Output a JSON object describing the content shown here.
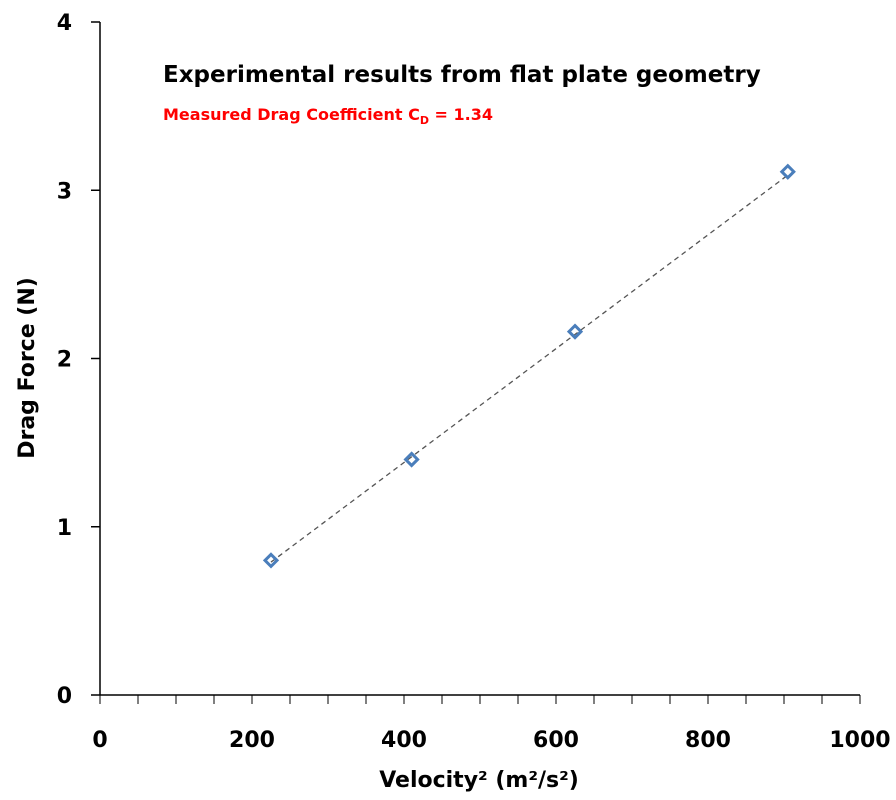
{
  "chart_data": {
    "type": "scatter",
    "title": "Experimental results from flat plate geometry",
    "annotation": {
      "prefix": "Measured  Drag  Coefficient  C",
      "subscript": "D",
      "suffix": " = 1.34",
      "color": "#ff0000"
    },
    "xlabel": "Velocity² (m²/s²)",
    "ylabel": "Drag Force (N)",
    "xlim": [
      0,
      1000
    ],
    "ylim": [
      0,
      4
    ],
    "x_ticks": [
      0,
      200,
      400,
      600,
      800,
      1000
    ],
    "x_tick_labels": [
      "0",
      "200",
      "400",
      "600",
      "800",
      "1000"
    ],
    "y_ticks": [
      0,
      1,
      2,
      3,
      4
    ],
    "y_tick_labels": [
      "0",
      "1",
      "2",
      "3",
      "4"
    ],
    "x_minor_step": 50,
    "grid": false,
    "legend": "none",
    "series": [
      {
        "marker": "diamond",
        "color": "#4a7ebb",
        "x": [
          225,
          410,
          625,
          905
        ],
        "y": [
          0.8,
          1.4,
          2.16,
          3.11
        ]
      }
    ],
    "trendline": {
      "style": "dashed",
      "color": "#555555",
      "x": [
        225,
        905
      ],
      "y": [
        0.79,
        3.09
      ]
    }
  }
}
